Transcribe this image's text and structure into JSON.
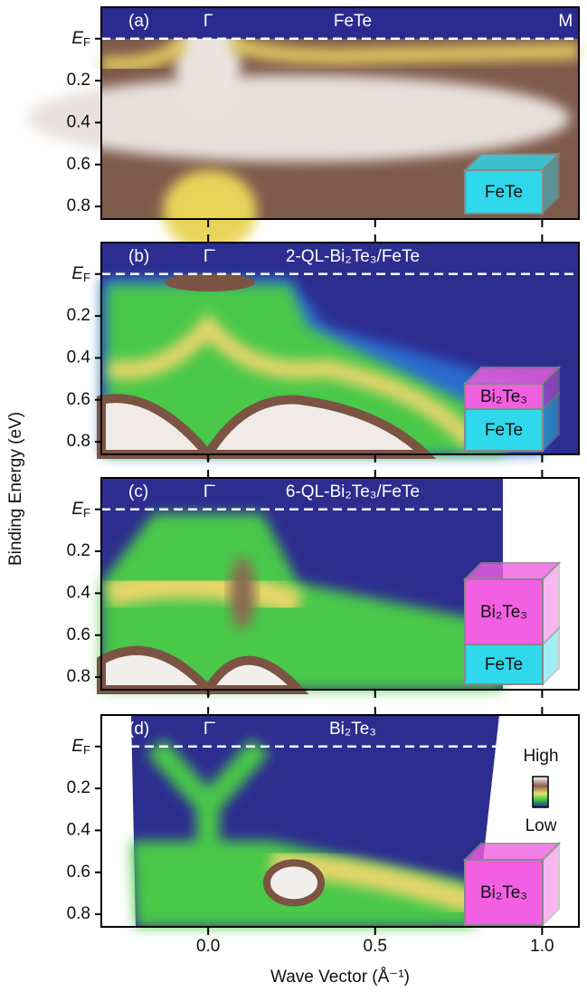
{
  "chart_data": {
    "type": "heatmap",
    "xlabel": "Wave Vector (Å⁻¹)",
    "ylabel": "Binding Energy (eV)",
    "xlim": [
      -0.32,
      1.11
    ],
    "xticks": [
      {
        "value": 0,
        "label": "0.0"
      },
      0.5,
      {
        "value": 1,
        "label": "1.0"
      }
    ],
    "ylim": [
      -0.15,
      0.86
    ],
    "yticks": [
      {
        "value": 0,
        "label": "EF"
      },
      0.2,
      0.4,
      0.6,
      0.8
    ],
    "panels": [
      {
        "label": "(a)",
        "title": "FeTe",
        "points": [
          {
            "name": "Γ",
            "k": 0
          },
          {
            "name": "M",
            "k": 1.07
          }
        ],
        "layers": [
          {
            "name": "FeTe",
            "color": "#2fd8ea"
          }
        ]
      },
      {
        "label": "(b)",
        "title": "2-QL-Bi₂Te₃/FeTe",
        "points": [
          {
            "name": "Γ̄",
            "k": 0
          }
        ],
        "layers": [
          {
            "name": "Bi₂Te₃",
            "color": "#f25fe2"
          },
          {
            "name": "FeTe",
            "color": "#2fd8ea"
          }
        ]
      },
      {
        "label": "(c)",
        "title": "6-QL-Bi₂Te₃/FeTe",
        "points": [
          {
            "name": "Γ̄",
            "k": 0
          }
        ],
        "layers": [
          {
            "name": "Bi₂Te₃",
            "color": "#f25fe2"
          },
          {
            "name": "FeTe",
            "color": "#2fd8ea"
          }
        ]
      },
      {
        "label": "(d)",
        "title": "Bi₂Te₃",
        "points": [
          {
            "name": "Γ̄",
            "k": 0
          }
        ],
        "layers": [
          {
            "name": "Bi₂Te₃",
            "color": "#f25fe2"
          }
        ]
      }
    ],
    "colorbar": {
      "high": "High",
      "low": "Low"
    }
  }
}
